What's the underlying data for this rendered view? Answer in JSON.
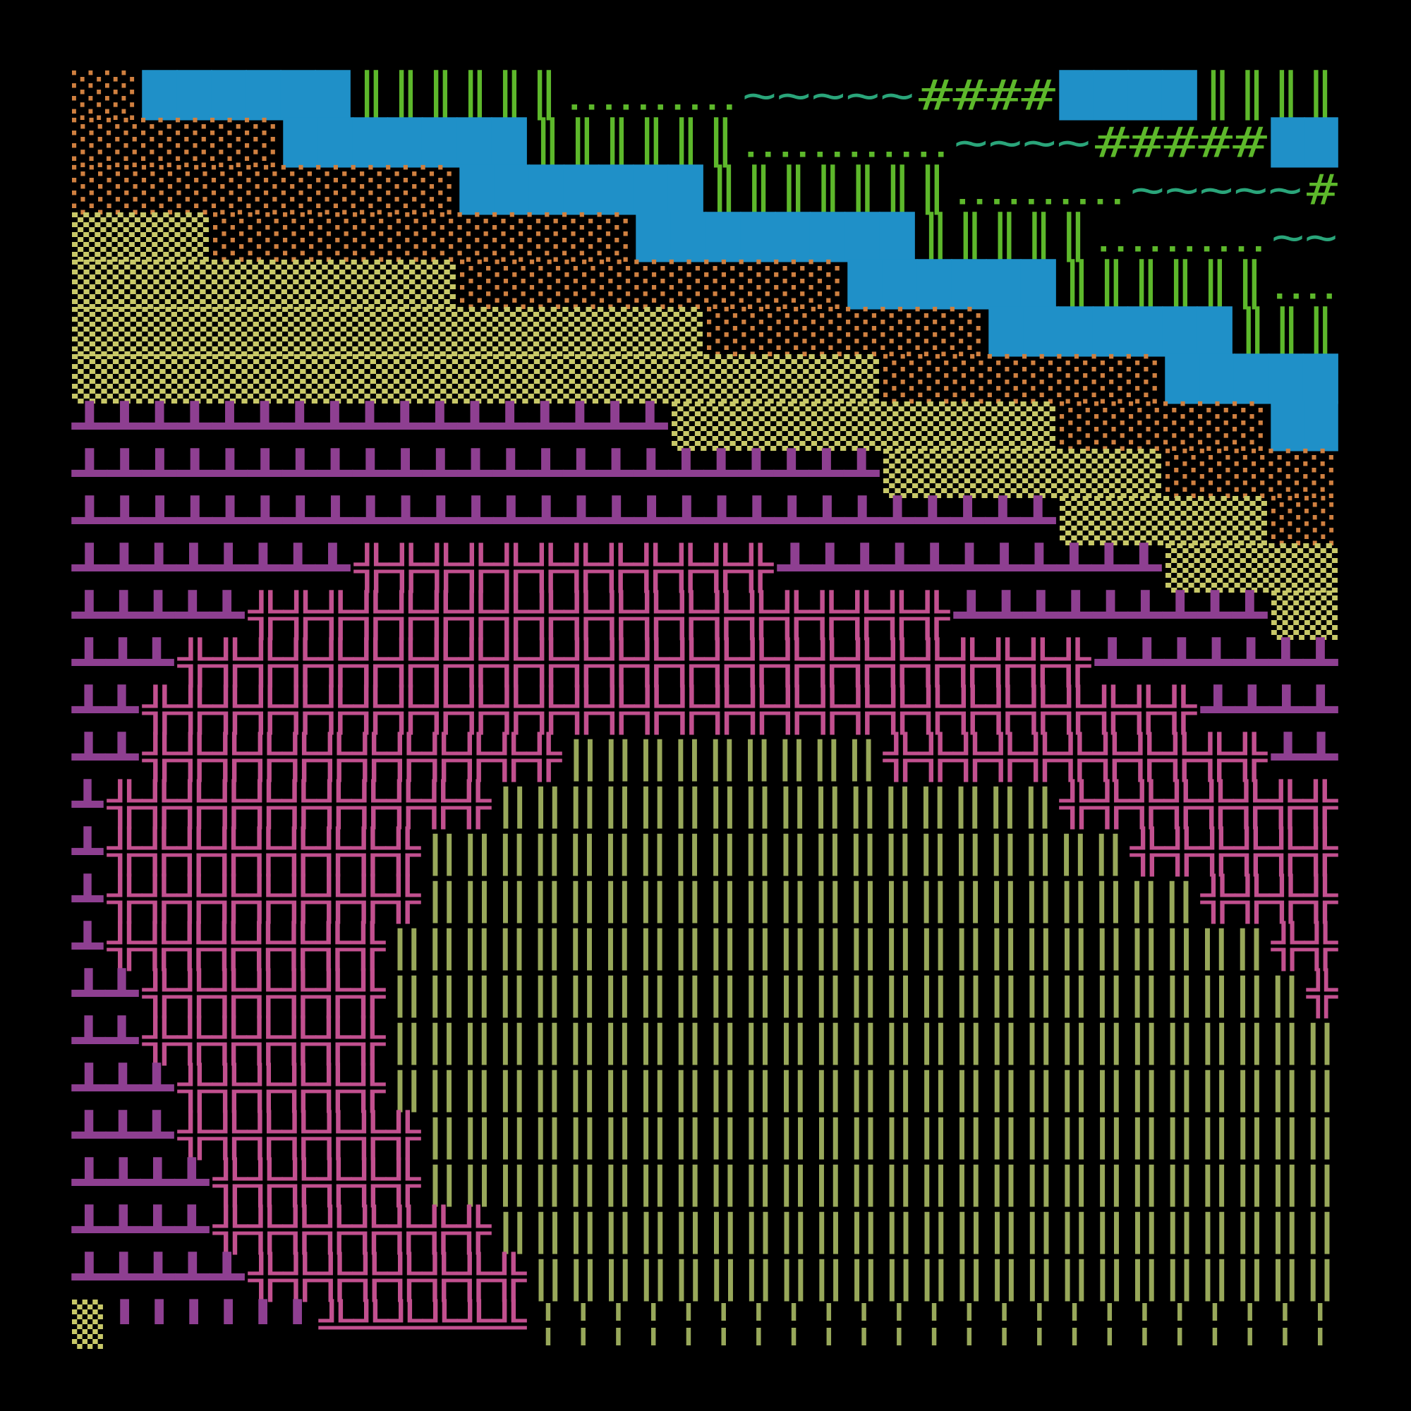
{
  "rows": [
    [
      {
        "text": "░░",
        "color": "#d08040"
      },
      {
        "text": "██████",
        "color": "#1f90c8"
      },
      {
        "text": "║║║║║║",
        "color": "#5db82b"
      },
      {
        "text": "‥‥‥‥‥",
        "color": "#5db82b"
      },
      {
        "text": "~~~~~",
        "color": "#2aa57a"
      },
      {
        "text": "####",
        "color": "#5db82b"
      },
      {
        "text": "████",
        "color": "#1f90c8"
      },
      {
        "text": "║║║║",
        "color": "#5db82b"
      }
    ],
    [
      {
        "text": "░░░░░░",
        "color": "#d08040"
      },
      {
        "text": "███████",
        "color": "#1f90c8"
      },
      {
        "text": "║║║║║║",
        "color": "#5db82b"
      },
      {
        "text": "‥‥‥‥‥‥",
        "color": "#5db82b"
      },
      {
        "text": "~~~~",
        "color": "#2aa57a"
      },
      {
        "text": "#####",
        "color": "#5db82b"
      },
      {
        "text": "██",
        "color": "#1f90c8"
      }
    ],
    [
      {
        "text": "░░░░░░░░░░░",
        "color": "#d08040"
      },
      {
        "text": "███████",
        "color": "#1f90c8"
      },
      {
        "text": "║║║║║║║",
        "color": "#5db82b"
      },
      {
        "text": "‥‥‥‥‥",
        "color": "#5db82b"
      },
      {
        "text": "~~~~~",
        "color": "#2aa57a"
      },
      {
        "text": "#",
        "color": "#5db82b"
      }
    ],
    [
      {
        "text": "▒▒▒▒",
        "color": "#c8c868"
      },
      {
        "text": "░░░░░░░░░░░░",
        "color": "#d08040"
      },
      {
        "text": "████████",
        "color": "#1f90c8"
      },
      {
        "text": "║║║║║",
        "color": "#5db82b"
      },
      {
        "text": "‥‥‥‥‥",
        "color": "#5db82b"
      },
      {
        "text": "~~",
        "color": "#2aa57a"
      }
    ],
    [
      {
        "text": "▒▒▒▒▒▒▒▒▒▒▒",
        "color": "#c8c868"
      },
      {
        "text": "░░░░░░░░░░░",
        "color": "#d08040"
      },
      {
        "text": "██████",
        "color": "#1f90c8"
      },
      {
        "text": "║║║║║║",
        "color": "#5db82b"
      },
      {
        "text": "‥‥",
        "color": "#5db82b"
      }
    ],
    [
      {
        "text": "▒▒▒▒▒▒▒▒▒▒▒▒▒▒▒▒▒▒",
        "color": "#c8c868"
      },
      {
        "text": "░░░░░░░░",
        "color": "#d08040"
      },
      {
        "text": "███████",
        "color": "#1f90c8"
      },
      {
        "text": "║║║",
        "color": "#5db82b"
      }
    ],
    [
      {
        "text": "▒▒▒▒▒▒▒▒▒▒▒▒▒▒▒▒▒▒▒▒▒▒▒",
        "color": "#c8c868"
      },
      {
        "text": "░░░░░░░░",
        "color": "#d08040"
      },
      {
        "text": "█████",
        "color": "#1f90c8"
      }
    ],
    [
      {
        "text": "┻┻┻┻┻┻┻┻┻┻┻┻┻┻┻┻┻",
        "color": "#8e3f91"
      },
      {
        "text": "▒▒▒▒▒▒▒▒▒▒▒",
        "color": "#c8c868"
      },
      {
        "text": "░░░░░░",
        "color": "#d08040"
      },
      {
        "text": "██",
        "color": "#1f90c8"
      }
    ],
    [
      {
        "text": "┻┻┻┻┻┻┻┻┻┻┻┻┻┻┻┻┻┻┻┻┻┻┻",
        "color": "#8e3f91"
      },
      {
        "text": "▒▒▒▒▒▒▒▒",
        "color": "#c8c868"
      },
      {
        "text": "░░░░░",
        "color": "#d08040"
      }
    ],
    [
      {
        "text": "┻┻┻┻┻┻┻┻┻┻┻┻┻┻┻┻┻┻┻┻┻┻┻┻┻┻┻┻",
        "color": "#8e3f91"
      },
      {
        "text": "▒▒▒▒▒▒",
        "color": "#c8c868"
      },
      {
        "text": "░░",
        "color": "#d08040"
      }
    ],
    [
      {
        "text": "┻┻┻┻┻┻┻┻",
        "color": "#8e3f91"
      },
      {
        "text": "╬╬╬╬╬╬╬╬╬╬╬╬",
        "color": "#c2508f"
      },
      {
        "text": "┻┻┻┻┻┻┻┻┻┻┻",
        "color": "#8e3f91"
      },
      {
        "text": "▒▒▒▒▒",
        "color": "#c8c868"
      }
    ],
    [
      {
        "text": "┻┻┻┻┻",
        "color": "#8e3f91"
      },
      {
        "text": "╬╬╬╬╬╬╬╬╬╬╬╬╬╬╬╬╬╬╬╬",
        "color": "#c2508f"
      },
      {
        "text": "┻┻┻┻┻┻┻┻┻",
        "color": "#8e3f91"
      },
      {
        "text": "▒▒",
        "color": "#c8c868"
      }
    ],
    [
      {
        "text": "┻┻┻",
        "color": "#8e3f91"
      },
      {
        "text": "╬╬╬╬╬╬╬╬╬╬╬╬╬╬╬╬╬╬╬╬╬╬╬╬╬╬",
        "color": "#c2508f"
      },
      {
        "text": "┻┻┻┻┻┻┻",
        "color": "#8e3f91"
      }
    ],
    [
      {
        "text": "┻┻",
        "color": "#8e3f91"
      },
      {
        "text": "╬╬╬╬╬╬╬╬╬╬╬╬╬╬╬╬╬╬╬╬╬╬╬╬╬╬╬╬╬╬",
        "color": "#c2508f"
      },
      {
        "text": "┻┻┻┻",
        "color": "#8e3f91"
      }
    ],
    [
      {
        "text": "┻┻",
        "color": "#8e3f91"
      },
      {
        "text": "╬╬╬╬╬╬╬╬╬╬╬╬",
        "color": "#c2508f"
      },
      {
        "text": "‖‖‖‖‖‖‖‖‖",
        "color": "#98a85a"
      },
      {
        "text": "╬╬╬╬╬╬╬╬╬╬╬",
        "color": "#c2508f"
      },
      {
        "text": "┻┻",
        "color": "#8e3f91"
      }
    ],
    [
      {
        "text": "┻",
        "color": "#8e3f91"
      },
      {
        "text": "╬╬╬╬╬╬╬╬╬╬╬",
        "color": "#c2508f"
      },
      {
        "text": "‖‖‖‖‖‖‖‖‖‖‖‖‖‖‖‖",
        "color": "#98a85a"
      },
      {
        "text": "╬╬╬╬╬╬╬╬",
        "color": "#c2508f"
      }
    ],
    [
      {
        "text": "┻",
        "color": "#8e3f91"
      },
      {
        "text": "╬╬╬╬╬╬╬╬╬",
        "color": "#c2508f"
      },
      {
        "text": "‖‖‖‖‖‖‖‖‖‖‖‖‖‖‖‖‖‖‖‖",
        "color": "#98a85a"
      },
      {
        "text": "╬╬╬╬╬╬",
        "color": "#c2508f"
      }
    ],
    [
      {
        "text": "┻",
        "color": "#8e3f91"
      },
      {
        "text": "╬╬╬╬╬╬╬╬╬",
        "color": "#c2508f"
      },
      {
        "text": "‖‖‖‖‖‖‖‖‖‖‖‖‖‖‖‖‖‖‖‖‖‖",
        "color": "#98a85a"
      },
      {
        "text": "╬╬╬╬",
        "color": "#c2508f"
      }
    ],
    [
      {
        "text": "┻",
        "color": "#8e3f91"
      },
      {
        "text": "╬╬╬╬╬╬╬╬",
        "color": "#c2508f"
      },
      {
        "text": "‖‖‖‖‖‖‖‖‖‖‖‖‖‖‖‖‖‖‖‖‖‖‖‖‖",
        "color": "#98a85a"
      },
      {
        "text": "╬╬",
        "color": "#c2508f"
      }
    ],
    [
      {
        "text": "┻┻",
        "color": "#8e3f91"
      },
      {
        "text": "╬╬╬╬╬╬╬",
        "color": "#c2508f"
      },
      {
        "text": "‖‖‖‖‖‖‖‖‖‖‖‖‖‖‖‖‖‖‖‖‖‖‖‖‖‖",
        "color": "#98a85a"
      },
      {
        "text": "╬",
        "color": "#c2508f"
      }
    ],
    [
      {
        "text": "┻┻",
        "color": "#8e3f91"
      },
      {
        "text": "╬╬╬╬╬╬╬",
        "color": "#c2508f"
      },
      {
        "text": "‖‖‖‖‖‖‖‖‖‖‖‖‖‖‖‖‖‖‖‖‖‖‖‖‖‖‖",
        "color": "#98a85a"
      }
    ],
    [
      {
        "text": "┻┻┻",
        "color": "#8e3f91"
      },
      {
        "text": "╬╬╬╬╬╬",
        "color": "#c2508f"
      },
      {
        "text": "‖‖‖‖‖‖‖‖‖‖‖‖‖‖‖‖‖‖‖‖‖‖‖‖‖‖‖",
        "color": "#98a85a"
      }
    ],
    [
      {
        "text": "┻┻┻",
        "color": "#8e3f91"
      },
      {
        "text": "╬╬╬╬╬╬╬",
        "color": "#c2508f"
      },
      {
        "text": "‖‖‖‖‖‖‖‖‖‖‖‖‖‖‖‖‖‖‖‖‖‖‖‖‖‖",
        "color": "#98a85a"
      }
    ],
    [
      {
        "text": "┻┻┻┻",
        "color": "#8e3f91"
      },
      {
        "text": "╬╬╬╬╬╬",
        "color": "#c2508f"
      },
      {
        "text": "‖‖‖‖‖‖‖‖‖‖‖‖‖‖‖‖‖‖‖‖‖‖‖‖‖‖",
        "color": "#98a85a"
      }
    ],
    [
      {
        "text": "┻┻┻┻",
        "color": "#8e3f91"
      },
      {
        "text": "╬╬╬╬╬╬╬╬",
        "color": "#c2508f"
      },
      {
        "text": "‖‖‖‖‖‖‖‖‖‖‖‖‖‖‖‖‖‖‖‖‖‖‖‖",
        "color": "#98a85a"
      }
    ],
    [
      {
        "text": "┻┻┻┻┻",
        "color": "#8e3f91"
      },
      {
        "text": "╬╬╬╬╬╬╬╬",
        "color": "#c2508f"
      },
      {
        "text": "‖‖‖‖‖‖‖‖‖‖‖‖‖‖‖‖‖‖‖‖‖‖‖",
        "color": "#98a85a"
      }
    ],
    [
      {
        "text": "▒",
        "color": "#c8c868"
      },
      {
        "text": "╹╹╹╹╹╹",
        "color": "#8e3f91"
      },
      {
        "text": "╩╩╩╩╩╩",
        "color": "#c2508f"
      },
      {
        "text": "╎╎╎╎╎╎╎╎╎╎╎╎╎╎╎╎╎╎╎╎╎╎╎",
        "color": "#98a85a"
      }
    ]
  ]
}
